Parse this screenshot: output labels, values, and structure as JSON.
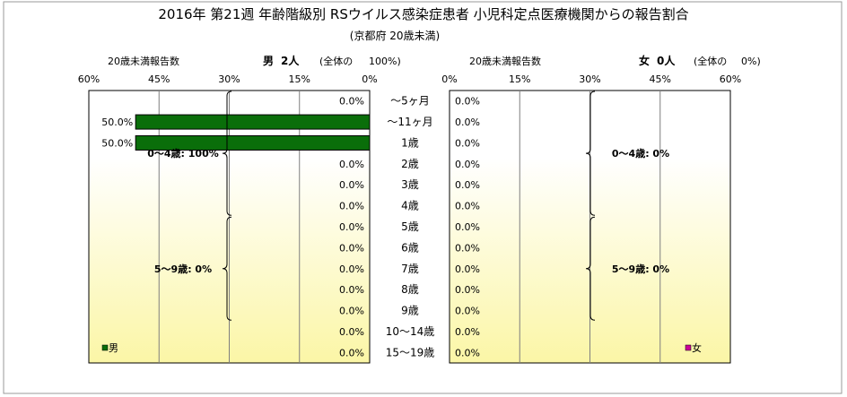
{
  "title": "2016年 第21週 年齢階級別 RSウイルス感染症患者 小児科定点医療機関からの報告割合",
  "subtitle": "(京都府 20歳未満)",
  "colors": {
    "male_bar": "#0a6e0a",
    "female_marker": "#cc0099",
    "male_marker": "#0a6e0a",
    "panel_top": "#ffffff",
    "panel_bottom": "#fbf6a6"
  },
  "chart_data": [
    {
      "type": "bar",
      "orientation": "horizontal",
      "direction": "right-to-left",
      "panel": "male",
      "header_left": "20歳未満報告数",
      "header_sex": "男",
      "header_count": "2人",
      "header_total": "(全体の",
      "header_total_pct": "100%)",
      "ticks": [
        "60%",
        "45%",
        "30%",
        "15%",
        "0%"
      ],
      "xlim": [
        0,
        60
      ],
      "categories": [
        "～5ヶ月",
        "～11ヶ月",
        "1歳",
        "2歳",
        "3歳",
        "4歳",
        "5歳",
        "6歳",
        "7歳",
        "8歳",
        "9歳",
        "10～14歳",
        "15～19歳"
      ],
      "values": [
        0,
        50,
        50,
        0,
        0,
        0,
        0,
        0,
        0,
        0,
        0,
        0,
        0
      ],
      "labels": [
        "0.0%",
        "50.0%",
        "50.0%",
        "0.0%",
        "0.0%",
        "0.0%",
        "0.0%",
        "0.0%",
        "0.0%",
        "0.0%",
        "0.0%",
        "0.0%",
        "0.0%"
      ],
      "groups": [
        {
          "label": "0～4歳: 100%",
          "from": 0,
          "to": 5
        },
        {
          "label": "5～9歳: 0%",
          "from": 6,
          "to": 10
        }
      ],
      "legend": {
        "label": "男",
        "position": "bottom-left"
      },
      "grid": true
    },
    {
      "type": "bar",
      "orientation": "horizontal",
      "direction": "left-to-right",
      "panel": "female",
      "header_left": "20歳未満報告数",
      "header_sex": "女",
      "header_count": "0人",
      "header_total": "(全体の",
      "header_total_pct": "0%)",
      "ticks": [
        "0%",
        "15%",
        "30%",
        "45%",
        "60%"
      ],
      "xlim": [
        0,
        60
      ],
      "values": [
        0,
        0,
        0,
        0,
        0,
        0,
        0,
        0,
        0,
        0,
        0,
        0,
        0
      ],
      "labels": [
        "0.0%",
        "0.0%",
        "0.0%",
        "0.0%",
        "0.0%",
        "0.0%",
        "0.0%",
        "0.0%",
        "0.0%",
        "0.0%",
        "0.0%",
        "0.0%",
        "0.0%"
      ],
      "groups": [
        {
          "label": "0～4歳: 0%",
          "from": 0,
          "to": 5
        },
        {
          "label": "5～9歳: 0%",
          "from": 6,
          "to": 10
        }
      ],
      "legend": {
        "label": "女",
        "position": "bottom-right"
      },
      "grid": true
    }
  ]
}
